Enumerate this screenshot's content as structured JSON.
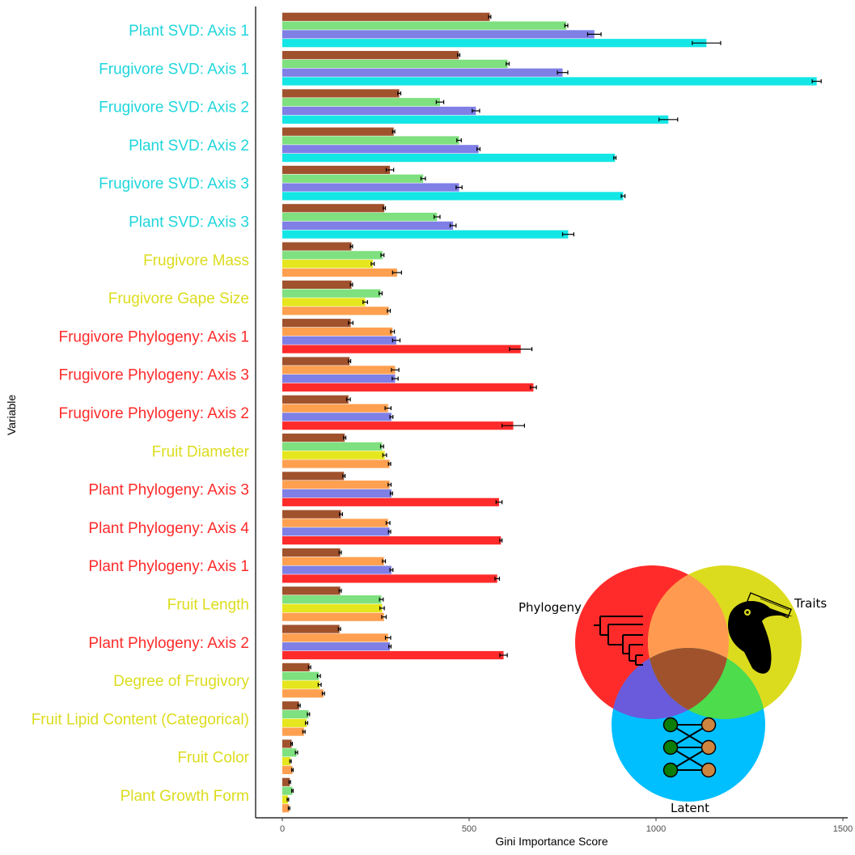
{
  "chart_data": {
    "type": "bar",
    "orientation": "horizontal",
    "xlabel": "Gini Importance Score",
    "ylabel": "Variable",
    "xlim": [
      0,
      1500
    ],
    "xticks": [
      0,
      500,
      1000,
      1500
    ],
    "grid": false,
    "colors": {
      "svd_label": "#1fd6dc",
      "trait_label": "#dcdc1e",
      "phylo_label": "#ff2b2b",
      "bar_brown": "#a0522d",
      "bar_green": "#7ee07e",
      "bar_purple": "#7f7fe6",
      "bar_cyan": "#14e6e6",
      "bar_yellow": "#e6e61e",
      "bar_orange": "#ffa050",
      "bar_red": "#ff2b2b"
    },
    "categories": [
      {
        "label": "Plant SVD: Axis 1",
        "group": "svd",
        "bars": [
          {
            "color": "bar_brown",
            "value": 555,
            "err": 3
          },
          {
            "color": "bar_green",
            "value": 760,
            "err": 4
          },
          {
            "color": "bar_purple",
            "value": 835,
            "err": 18
          },
          {
            "color": "bar_cyan",
            "value": 1135,
            "err": 38
          }
        ]
      },
      {
        "label": "Frugivore SVD: Axis 1",
        "group": "svd",
        "bars": [
          {
            "color": "bar_brown",
            "value": 472,
            "err": 3
          },
          {
            "color": "bar_green",
            "value": 603,
            "err": 4
          },
          {
            "color": "bar_purple",
            "value": 750,
            "err": 14
          },
          {
            "color": "bar_cyan",
            "value": 1430,
            "err": 12
          }
        ]
      },
      {
        "label": "Frugivore SVD: Axis 2",
        "group": "svd",
        "bars": [
          {
            "color": "bar_brown",
            "value": 313,
            "err": 4
          },
          {
            "color": "bar_green",
            "value": 422,
            "err": 10
          },
          {
            "color": "bar_purple",
            "value": 518,
            "err": 10
          },
          {
            "color": "bar_cyan",
            "value": 1033,
            "err": 25
          }
        ]
      },
      {
        "label": "Plant SVD: Axis 2",
        "group": "svd",
        "bars": [
          {
            "color": "bar_brown",
            "value": 298,
            "err": 3
          },
          {
            "color": "bar_green",
            "value": 473,
            "err": 6
          },
          {
            "color": "bar_purple",
            "value": 525,
            "err": 4
          },
          {
            "color": "bar_cyan",
            "value": 890,
            "err": 3
          }
        ]
      },
      {
        "label": "Frugivore SVD: Axis 3",
        "group": "svd",
        "bars": [
          {
            "color": "bar_brown",
            "value": 288,
            "err": 10
          },
          {
            "color": "bar_green",
            "value": 377,
            "err": 6
          },
          {
            "color": "bar_purple",
            "value": 473,
            "err": 8
          },
          {
            "color": "bar_cyan",
            "value": 912,
            "err": 5
          }
        ]
      },
      {
        "label": "Plant SVD: Axis 3",
        "group": "svd",
        "bars": [
          {
            "color": "bar_brown",
            "value": 273,
            "err": 3
          },
          {
            "color": "bar_green",
            "value": 414,
            "err": 8
          },
          {
            "color": "bar_purple",
            "value": 457,
            "err": 8
          },
          {
            "color": "bar_cyan",
            "value": 765,
            "err": 15
          }
        ]
      },
      {
        "label": "Frugivore Mass",
        "group": "trait",
        "bars": [
          {
            "color": "bar_brown",
            "value": 185,
            "err": 3
          },
          {
            "color": "bar_green",
            "value": 268,
            "err": 4
          },
          {
            "color": "bar_yellow",
            "value": 242,
            "err": 4
          },
          {
            "color": "bar_orange",
            "value": 307,
            "err": 12
          }
        ]
      },
      {
        "label": "Frugivore Gape Size",
        "group": "trait",
        "bars": [
          {
            "color": "bar_brown",
            "value": 185,
            "err": 3
          },
          {
            "color": "bar_green",
            "value": 263,
            "err": 4
          },
          {
            "color": "bar_yellow",
            "value": 222,
            "err": 6
          },
          {
            "color": "bar_orange",
            "value": 285,
            "err": 4
          }
        ]
      },
      {
        "label": "Frugivore Phylogeny: Axis 1",
        "group": "phylo",
        "bars": [
          {
            "color": "bar_brown",
            "value": 183,
            "err": 6
          },
          {
            "color": "bar_orange",
            "value": 295,
            "err": 5
          },
          {
            "color": "bar_purple",
            "value": 305,
            "err": 10
          },
          {
            "color": "bar_red",
            "value": 638,
            "err": 30
          }
        ]
      },
      {
        "label": "Frugivore Phylogeny: Axis 3",
        "group": "phylo",
        "bars": [
          {
            "color": "bar_brown",
            "value": 180,
            "err": 3
          },
          {
            "color": "bar_orange",
            "value": 302,
            "err": 10
          },
          {
            "color": "bar_purple",
            "value": 302,
            "err": 8
          },
          {
            "color": "bar_red",
            "value": 672,
            "err": 8
          }
        ]
      },
      {
        "label": "Frugivore Phylogeny: Axis 2",
        "group": "phylo",
        "bars": [
          {
            "color": "bar_brown",
            "value": 177,
            "err": 5
          },
          {
            "color": "bar_orange",
            "value": 283,
            "err": 8
          },
          {
            "color": "bar_purple",
            "value": 292,
            "err": 4
          },
          {
            "color": "bar_red",
            "value": 618,
            "err": 30
          }
        ]
      },
      {
        "label": "Fruit Diameter",
        "group": "trait",
        "bars": [
          {
            "color": "bar_brown",
            "value": 167,
            "err": 3
          },
          {
            "color": "bar_green",
            "value": 267,
            "err": 4
          },
          {
            "color": "bar_yellow",
            "value": 274,
            "err": 5
          },
          {
            "color": "bar_orange",
            "value": 287,
            "err": 3
          }
        ]
      },
      {
        "label": "Plant Phylogeny: Axis 3",
        "group": "phylo",
        "bars": [
          {
            "color": "bar_brown",
            "value": 165,
            "err": 3
          },
          {
            "color": "bar_orange",
            "value": 287,
            "err": 4
          },
          {
            "color": "bar_purple",
            "value": 292,
            "err": 3
          },
          {
            "color": "bar_red",
            "value": 580,
            "err": 8
          }
        ]
      },
      {
        "label": "Plant Phylogeny: Axis 4",
        "group": "phylo",
        "bars": [
          {
            "color": "bar_brown",
            "value": 157,
            "err": 4
          },
          {
            "color": "bar_orange",
            "value": 283,
            "err": 5
          },
          {
            "color": "bar_purple",
            "value": 287,
            "err": 3
          },
          {
            "color": "bar_red",
            "value": 585,
            "err": 3
          }
        ]
      },
      {
        "label": "Plant Phylogeny: Axis 1",
        "group": "phylo",
        "bars": [
          {
            "color": "bar_brown",
            "value": 155,
            "err": 3
          },
          {
            "color": "bar_orange",
            "value": 272,
            "err": 4
          },
          {
            "color": "bar_purple",
            "value": 292,
            "err": 4
          },
          {
            "color": "bar_red",
            "value": 575,
            "err": 6
          }
        ]
      },
      {
        "label": "Fruit Length",
        "group": "trait",
        "bars": [
          {
            "color": "bar_brown",
            "value": 155,
            "err": 3
          },
          {
            "color": "bar_green",
            "value": 265,
            "err": 5
          },
          {
            "color": "bar_yellow",
            "value": 267,
            "err": 6
          },
          {
            "color": "bar_orange",
            "value": 272,
            "err": 6
          }
        ]
      },
      {
        "label": "Plant Phylogeny: Axis 2",
        "group": "phylo",
        "bars": [
          {
            "color": "bar_brown",
            "value": 153,
            "err": 3
          },
          {
            "color": "bar_orange",
            "value": 283,
            "err": 7
          },
          {
            "color": "bar_purple",
            "value": 288,
            "err": 3
          },
          {
            "color": "bar_red",
            "value": 592,
            "err": 10
          }
        ]
      },
      {
        "label": "Degree of Frugivory",
        "group": "trait",
        "bars": [
          {
            "color": "bar_brown",
            "value": 73,
            "err": 3
          },
          {
            "color": "bar_green",
            "value": 98,
            "err": 4
          },
          {
            "color": "bar_yellow",
            "value": 100,
            "err": 4
          },
          {
            "color": "bar_orange",
            "value": 110,
            "err": 3
          }
        ]
      },
      {
        "label": "Fruit Lipid Content (Categorical)",
        "group": "trait",
        "bars": [
          {
            "color": "bar_brown",
            "value": 45,
            "err": 3
          },
          {
            "color": "bar_green",
            "value": 70,
            "err": 3
          },
          {
            "color": "bar_yellow",
            "value": 65,
            "err": 3
          },
          {
            "color": "bar_orange",
            "value": 58,
            "err": 3
          }
        ]
      },
      {
        "label": "Fruit Color",
        "group": "trait",
        "bars": [
          {
            "color": "bar_brown",
            "value": 25,
            "err": 2
          },
          {
            "color": "bar_green",
            "value": 38,
            "err": 3
          },
          {
            "color": "bar_yellow",
            "value": 22,
            "err": 2
          },
          {
            "color": "bar_orange",
            "value": 27,
            "err": 2
          }
        ]
      },
      {
        "label": "Plant Growth Form",
        "group": "trait",
        "bars": [
          {
            "color": "bar_brown",
            "value": 20,
            "err": 2
          },
          {
            "color": "bar_green",
            "value": 27,
            "err": 2
          },
          {
            "color": "bar_yellow",
            "value": 15,
            "err": 2
          },
          {
            "color": "bar_orange",
            "value": 18,
            "err": 2
          }
        ]
      }
    ]
  },
  "legend_venn": {
    "labels": {
      "phylogeny": "Phylogeny",
      "traits": "Traits",
      "latent": "Latent"
    },
    "icons": [
      "phylogenetic-tree-icon",
      "toucan-icon",
      "bipartite-network-icon"
    ],
    "colors": {
      "phylogeny": "#ff2b2b",
      "traits": "#dcdc1e",
      "latent": "#00bfff",
      "phylo_traits": "#ff9a50",
      "phylo_latent": "#6a5adc",
      "traits_latent": "#4cdc4c",
      "center": "#a0522d"
    }
  }
}
